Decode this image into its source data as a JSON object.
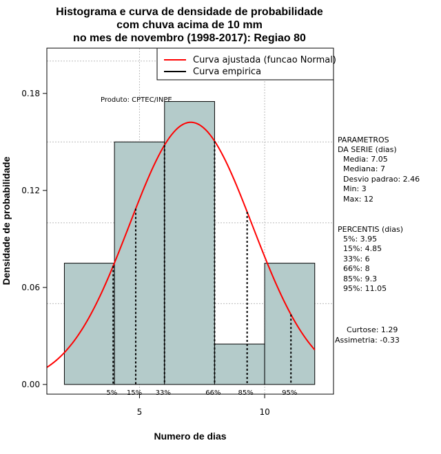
{
  "title_lines": [
    "Histograma e curva de densidade de probabilidade",
    "com chuva acima de 10 mm",
    "no mes de novembro (1998-2017): Regiao 80"
  ],
  "colors": {
    "bar_fill": "#b4cbca",
    "curve": "#ff0000",
    "grid": "#bbbbbb"
  },
  "credit": "Produto: CPTEC/INPE",
  "legend": {
    "fitted": "Curva ajustada (funcao Normal)",
    "empirical": "Curva empirica"
  },
  "stats": {
    "parametros_heading_1": "PARAMETROS",
    "parametros_heading_2": "DA SERIE (dias)",
    "parametros": [
      "Media: 7.05",
      "Mediana: 7",
      "Desvio padrao: 2.46",
      "Min: 3",
      "Max: 12"
    ],
    "percentis_heading": "PERCENTIS (dias)",
    "percentis": [
      "5%: 3.95",
      "15%: 4.85",
      "33%: 6",
      "66%: 8",
      "85%: 9.3",
      "95%: 11.05"
    ],
    "curtose": "Curtose: 1.29",
    "assimetria": "Assimetria: -0.33"
  },
  "chart_data": {
    "type": "histogram",
    "xlabel": "Numero de dias",
    "ylabel": "Densidade de probabilidade",
    "xlim": [
      1.3,
      12.75
    ],
    "ylim": [
      -0.006,
      0.208
    ],
    "x_ticks": [
      5,
      10
    ],
    "y_ticks": [
      0.0,
      0.06,
      0.12,
      0.18
    ],
    "y_tick_labels": [
      "0.00",
      "0.06",
      "0.12",
      "0.18"
    ],
    "y_grid": [
      0.05,
      0.1,
      0.15,
      0.2
    ],
    "x_grid": [
      5,
      10
    ],
    "bins": [
      {
        "x0": 2,
        "x1": 4,
        "density": 0.075
      },
      {
        "x0": 4,
        "x1": 6,
        "density": 0.15
      },
      {
        "x0": 6,
        "x1": 8,
        "density": 0.175
      },
      {
        "x0": 8,
        "x1": 10,
        "density": 0.025
      },
      {
        "x0": 10,
        "x1": 12,
        "density": 0.075
      }
    ],
    "normal_fit": {
      "mean": 7.05,
      "sd": 2.46,
      "x_range": [
        1.3,
        12.0
      ]
    },
    "percentiles": [
      {
        "label": "5%",
        "x": 3.95
      },
      {
        "label": "15%",
        "x": 4.85
      },
      {
        "label": "33%",
        "x": 6.0
      },
      {
        "label": "66%",
        "x": 8.0
      },
      {
        "label": "85%",
        "x": 9.3
      },
      {
        "label": "95%",
        "x": 11.05
      }
    ]
  }
}
